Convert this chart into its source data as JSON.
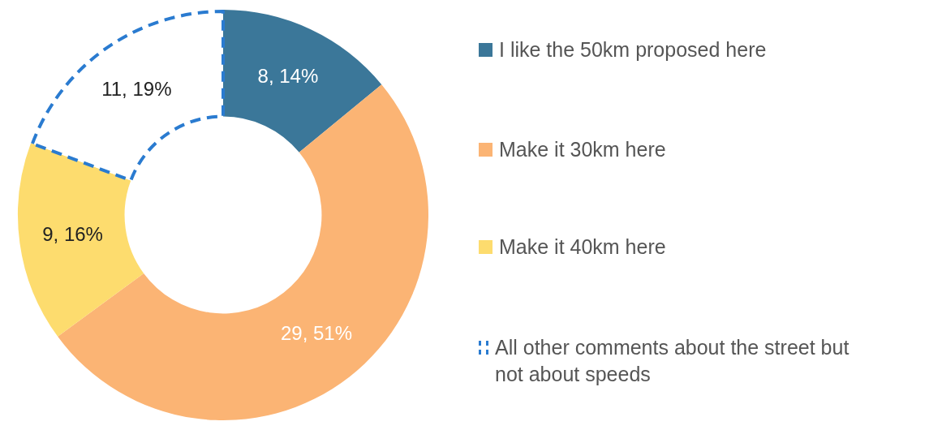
{
  "chart_data": {
    "type": "donut",
    "categories": [
      "I like the 50km proposed here",
      "Make it 30km here",
      "Make it 40km here",
      "All other comments about the street but not about speeds"
    ],
    "values": [
      8,
      29,
      9,
      11
    ],
    "colors": [
      "#3b7799",
      "#fbb474",
      "#fddc6e",
      "#ffffff"
    ],
    "value_labels": [
      "8, 14%",
      "29, 51%",
      "9, 16%",
      "11, 19%"
    ],
    "legend": "right"
  }
}
